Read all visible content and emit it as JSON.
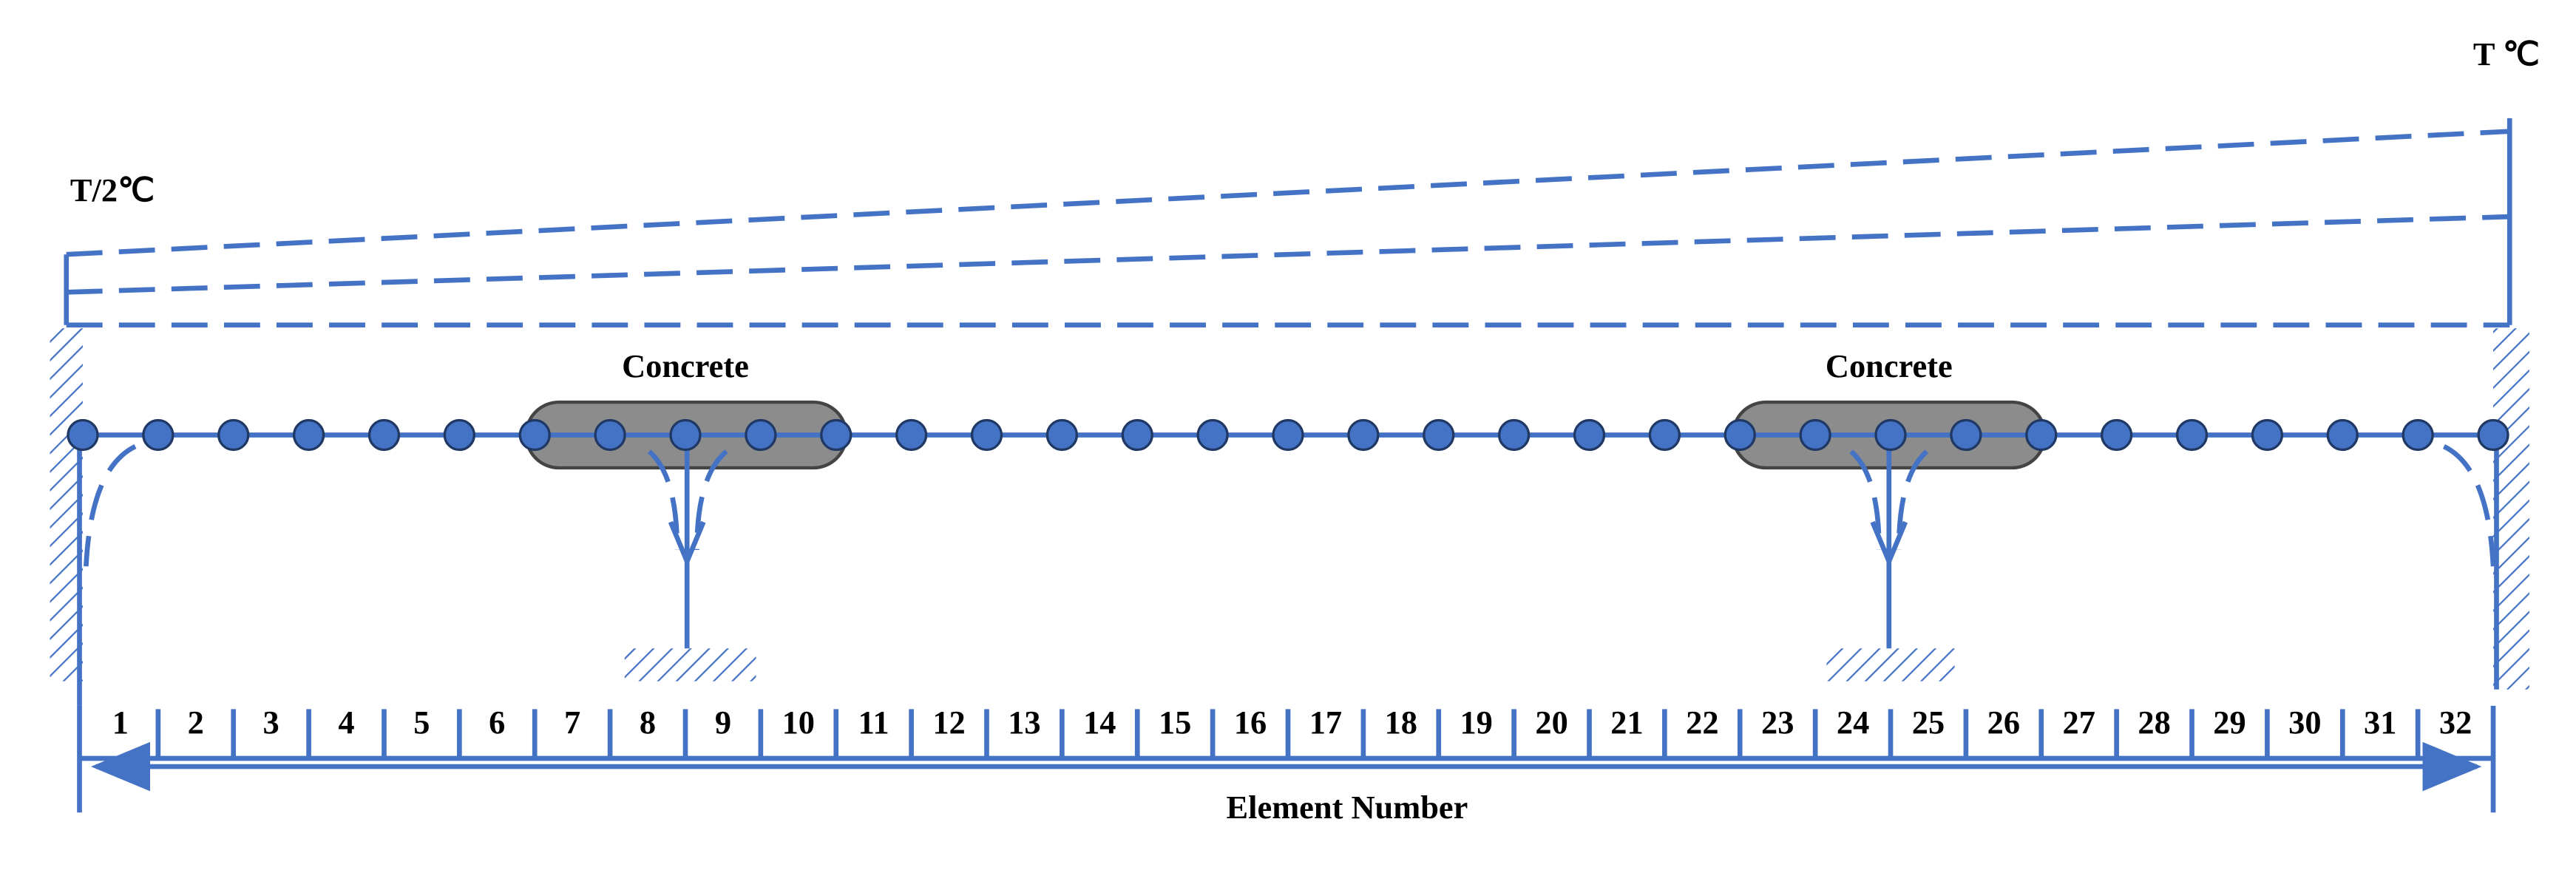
{
  "temperature": {
    "left_label": "T/2℃",
    "right_label": "T ℃"
  },
  "concrete": [
    {
      "label": "Concrete"
    },
    {
      "label": "Concrete"
    }
  ],
  "elements": [
    1,
    2,
    3,
    4,
    5,
    6,
    7,
    8,
    9,
    10,
    11,
    12,
    13,
    14,
    15,
    16,
    17,
    18,
    19,
    20,
    21,
    22,
    23,
    24,
    25,
    26,
    27,
    28,
    29,
    30,
    31,
    32
  ],
  "axis_label": "Element Number"
}
